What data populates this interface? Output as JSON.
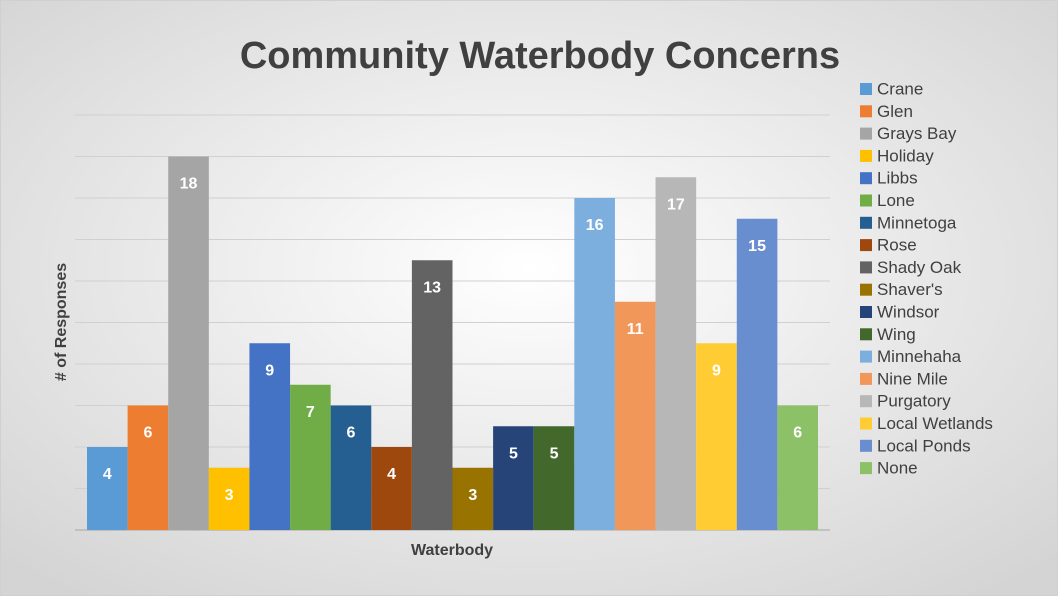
{
  "chart_data": {
    "type": "bar",
    "title": "Community Waterbody Concerns",
    "x_label": "Waterbody",
    "y_label": "# of Responses",
    "ylim": [
      0,
      20
    ],
    "yticks": [
      0,
      2,
      4,
      6,
      8,
      10,
      12,
      14,
      16,
      18,
      20
    ],
    "grid": true,
    "legend": "right",
    "series": [
      {
        "name": "Crane",
        "color": "#5B9BD5",
        "values": [
          4
        ]
      },
      {
        "name": "Glen",
        "color": "#ED7D31",
        "values": [
          6
        ]
      },
      {
        "name": "Grays Bay",
        "color": "#A5A5A5",
        "values": [
          18
        ]
      },
      {
        "name": "Holiday",
        "color": "#FFC000",
        "values": [
          3
        ]
      },
      {
        "name": "Libbs",
        "color": "#4472C4",
        "values": [
          9
        ]
      },
      {
        "name": "Lone",
        "color": "#70AD47",
        "values": [
          7
        ]
      },
      {
        "name": "Minnetoga",
        "color": "#255E91",
        "values": [
          6
        ]
      },
      {
        "name": "Rose",
        "color": "#9E480E",
        "values": [
          4
        ]
      },
      {
        "name": "Shady Oak",
        "color": "#636363",
        "values": [
          13
        ]
      },
      {
        "name": "Shaver's",
        "color": "#997300",
        "values": [
          3
        ]
      },
      {
        "name": "Windsor",
        "color": "#264478",
        "values": [
          5
        ]
      },
      {
        "name": "Wing",
        "color": "#43682B",
        "values": [
          5
        ]
      },
      {
        "name": "Minnehaha",
        "color": "#7CAFDD",
        "values": [
          16
        ]
      },
      {
        "name": "Nine Mile",
        "color": "#F1975A",
        "values": [
          11
        ]
      },
      {
        "name": "Purgatory",
        "color": "#B7B7B7",
        "values": [
          17
        ]
      },
      {
        "name": "Local Wetlands",
        "color": "#FFCD33",
        "values": [
          9
        ]
      },
      {
        "name": "Local Ponds",
        "color": "#698ED0",
        "values": [
          15
        ]
      },
      {
        "name": "None",
        "color": "#8CC168",
        "values": [
          6
        ]
      }
    ]
  }
}
